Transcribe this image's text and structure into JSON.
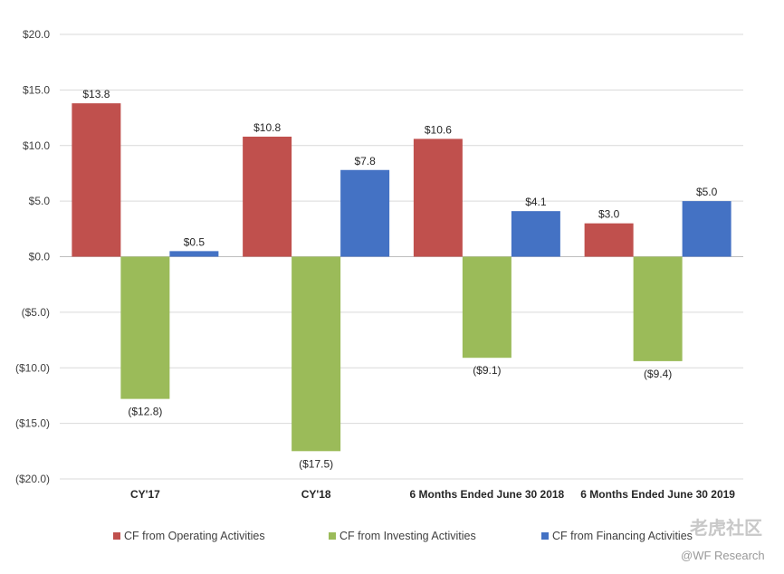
{
  "chart_data": {
    "type": "bar",
    "categories": [
      "CY'17",
      "CY'18",
      "6 Months  Ended June 30 2018",
      "6 Months  Ended June 30 2019"
    ],
    "series": [
      {
        "name": "CF from Operating Activities",
        "color": "#c0504d",
        "values": [
          13.8,
          10.8,
          10.6,
          3.0
        ],
        "labels": [
          "$13.8",
          "$10.8",
          "$10.6",
          "$3.0"
        ]
      },
      {
        "name": "CF from Investing Activities",
        "color": "#9bbb59",
        "values": [
          -12.8,
          -17.5,
          -9.1,
          -9.4
        ],
        "labels": [
          "($12.8)",
          "($17.5)",
          "($9.1)",
          "($9.4)"
        ]
      },
      {
        "name": "CF from Financing Activities",
        "color": "#4472c4",
        "values": [
          0.5,
          7.8,
          4.1,
          5.0
        ],
        "labels": [
          "$0.5",
          "$7.8",
          "$4.1",
          "$5.0"
        ]
      }
    ],
    "yticks": [
      20,
      15,
      10,
      5,
      0,
      -5,
      -10,
      -15,
      -20
    ],
    "ytick_labels": [
      "$20.0",
      "$15.0",
      "$10.0",
      "$5.0",
      "$0.0",
      "($5.0)",
      "($10.0)",
      "($15.0)",
      "($20.0)"
    ],
    "ylim": [
      -20,
      20
    ],
    "grid": true,
    "legend": "bottom",
    "title": "",
    "xlabel": "",
    "ylabel": ""
  },
  "watermark": {
    "line1": "老虎社区",
    "line2": "@WF Research"
  }
}
